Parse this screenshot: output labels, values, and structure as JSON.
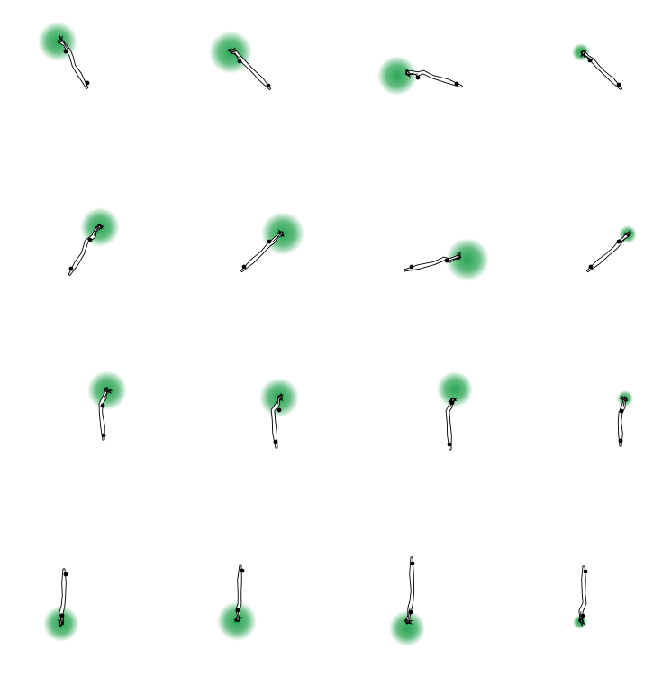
{
  "figure": {
    "background": "#ffffff",
    "target_color": "#1fa04a",
    "path_fill": "#ffffff",
    "stroke_color": "#000000",
    "grid": {
      "rows": 4,
      "cols": 4
    }
  }
}
